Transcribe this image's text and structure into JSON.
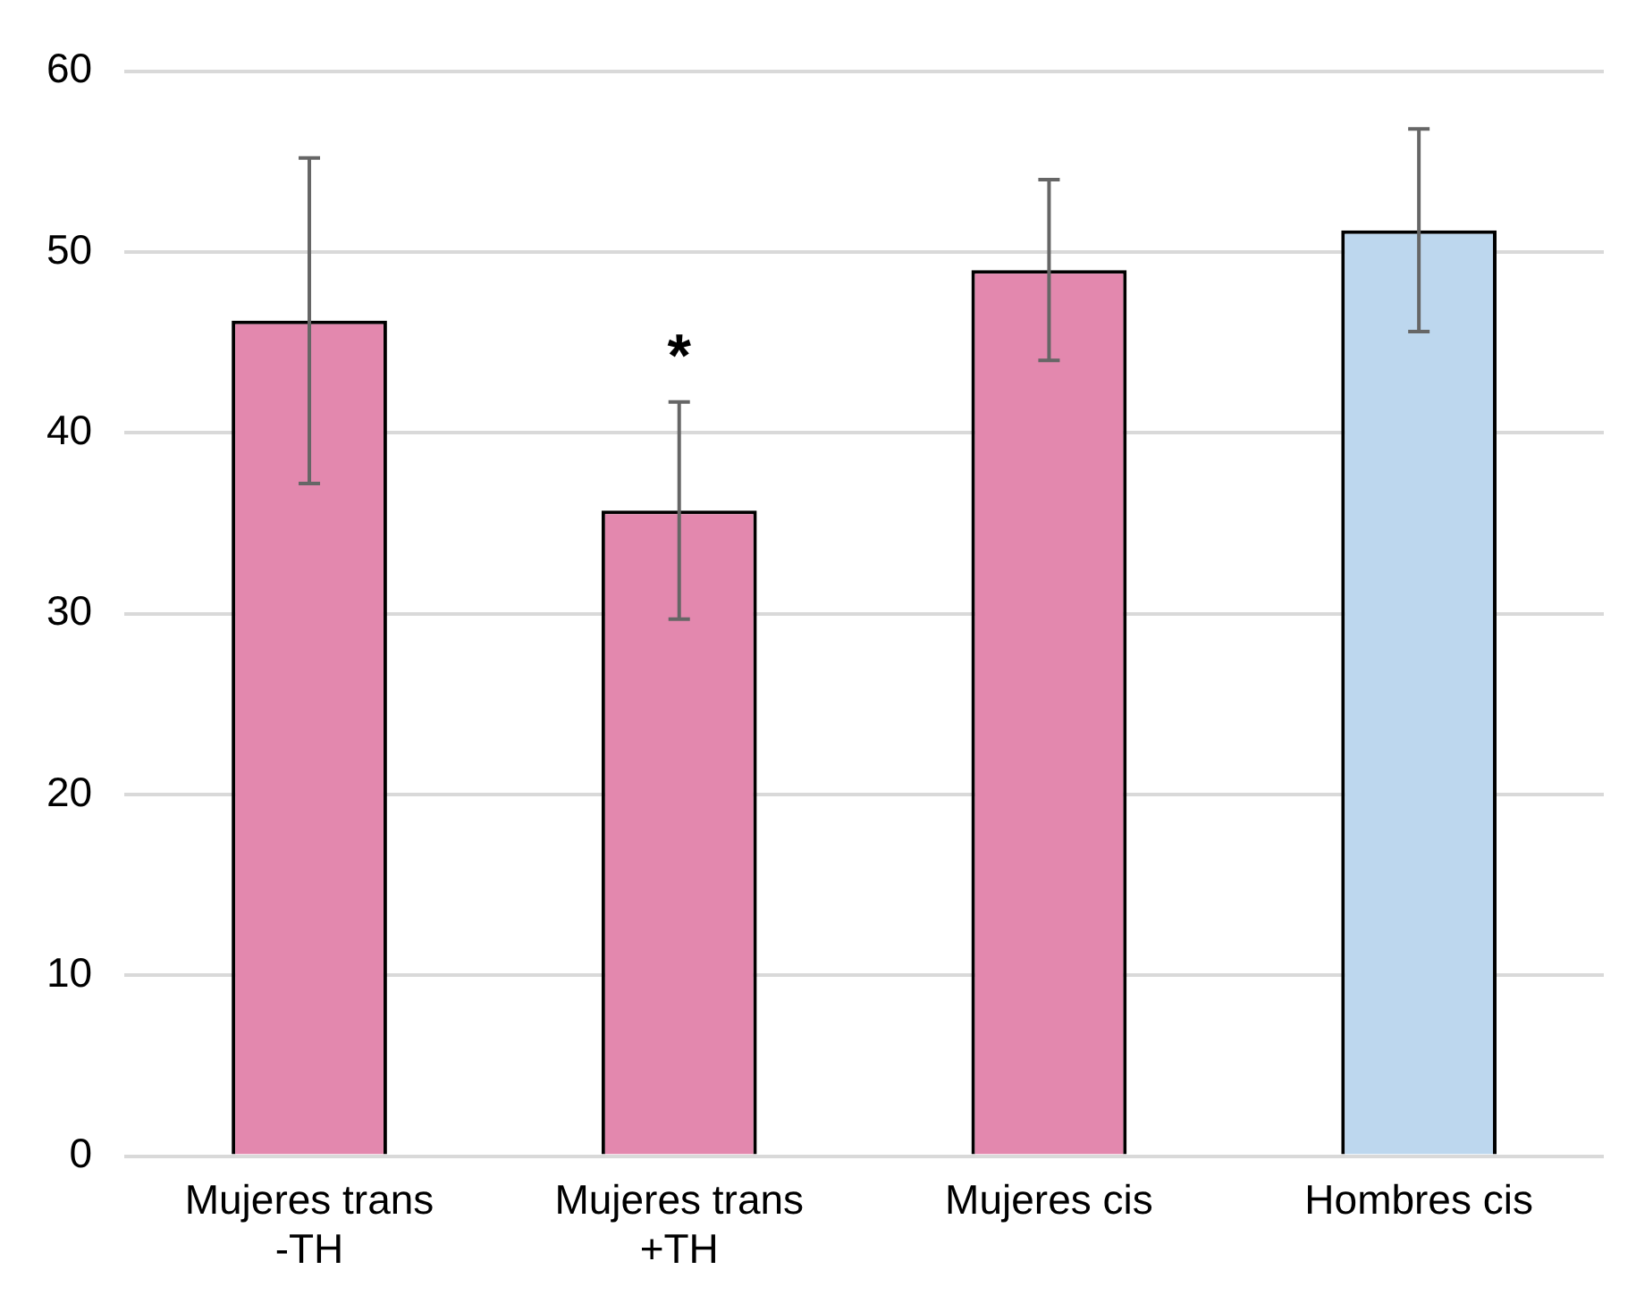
{
  "chart_data": {
    "type": "bar",
    "categories": [
      "Mujeres trans\n-TH",
      "Mujeres trans\n+TH",
      "Mujeres cis",
      "Hombres cis"
    ],
    "values": [
      46.2,
      35.7,
      49.0,
      51.2
    ],
    "colors": [
      "#e388ae",
      "#e388ae",
      "#e388ae",
      "#bdd7ee"
    ],
    "errors": [
      9,
      6,
      5,
      5.6
    ],
    "ylim": [
      0,
      60
    ],
    "yticks": [
      0,
      10,
      20,
      30,
      40,
      50,
      60
    ],
    "grid": "y",
    "legend": false,
    "annotations": [
      {
        "text": "*",
        "x": "Mujeres trans\n+TH",
        "y": 41.7
      }
    ]
  }
}
